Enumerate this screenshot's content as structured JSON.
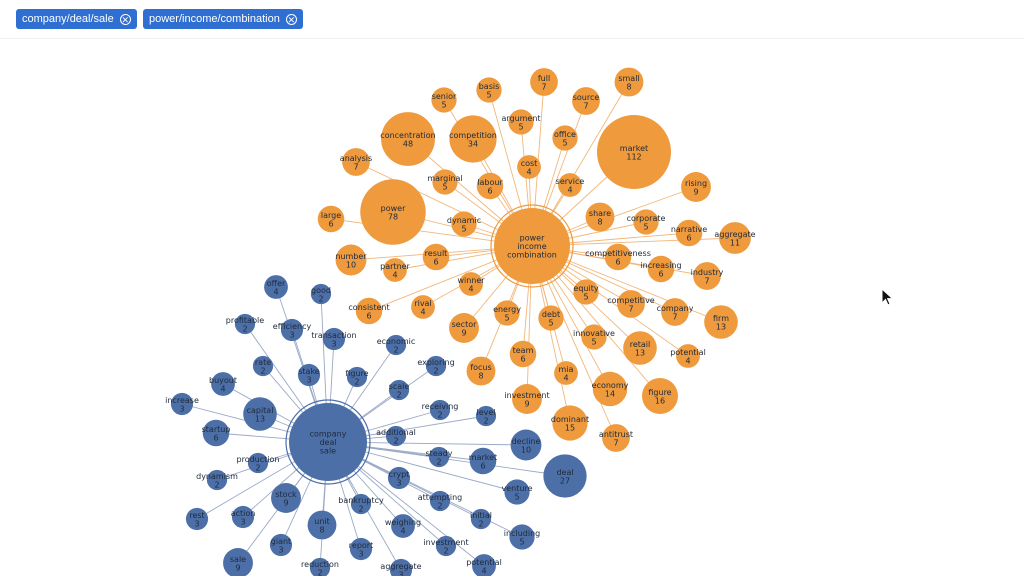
{
  "colors": {
    "chip": "#2f6fd2",
    "orange": "#ef9a3d",
    "blue": "#4d6fa8",
    "orange_edge": "#f2b77a",
    "blue_edge": "#9aa9c6"
  },
  "filters": [
    {
      "label": "company/deal/sale",
      "close_icon": "close-circle-icon"
    },
    {
      "label": "power/income/combination",
      "close_icon": "close-circle-icon"
    }
  ],
  "graph": {
    "hubs": [
      {
        "id": "orange",
        "lines": [
          "power",
          "income",
          "combination"
        ]
      },
      {
        "id": "blue",
        "lines": [
          "company",
          "deal",
          "sale"
        ]
      }
    ],
    "orange_nodes": [
      {
        "word": "senior",
        "count": 5
      },
      {
        "word": "basis",
        "count": 5
      },
      {
        "word": "full",
        "count": 7
      },
      {
        "word": "small",
        "count": 8
      },
      {
        "word": "source",
        "count": 7
      },
      {
        "word": "argument",
        "count": 5
      },
      {
        "word": "concentration",
        "count": 48
      },
      {
        "word": "competition",
        "count": 34
      },
      {
        "word": "office",
        "count": 5
      },
      {
        "word": "market",
        "count": 112
      },
      {
        "word": "analysis",
        "count": 7
      },
      {
        "word": "cost",
        "count": 4
      },
      {
        "word": "marginal",
        "count": 5
      },
      {
        "word": "labour",
        "count": 6
      },
      {
        "word": "service",
        "count": 4
      },
      {
        "word": "rising",
        "count": 9
      },
      {
        "word": "power",
        "count": 78
      },
      {
        "word": "large",
        "count": 6
      },
      {
        "word": "dynamic",
        "count": 5
      },
      {
        "word": "share",
        "count": 8
      },
      {
        "word": "corporate",
        "count": 5
      },
      {
        "word": "narrative",
        "count": 6
      },
      {
        "word": "aggregate",
        "count": 11
      },
      {
        "word": "number",
        "count": 10
      },
      {
        "word": "result",
        "count": 6
      },
      {
        "word": "partner",
        "count": 4
      },
      {
        "word": "competitiveness",
        "count": 6
      },
      {
        "word": "increasing",
        "count": 6
      },
      {
        "word": "industry",
        "count": 7
      },
      {
        "word": "winner",
        "count": 4
      },
      {
        "word": "equity",
        "count": 5
      },
      {
        "word": "consistent",
        "count": 6
      },
      {
        "word": "rival",
        "count": 4
      },
      {
        "word": "competitive",
        "count": 7
      },
      {
        "word": "company",
        "count": 7
      },
      {
        "word": "firm",
        "count": 13
      },
      {
        "word": "energy",
        "count": 5
      },
      {
        "word": "sector",
        "count": 9
      },
      {
        "word": "debt",
        "count": 5
      },
      {
        "word": "innovative",
        "count": 5
      },
      {
        "word": "retail",
        "count": 13
      },
      {
        "word": "potential",
        "count": 4
      },
      {
        "word": "team",
        "count": 6
      },
      {
        "word": "focus",
        "count": 8
      },
      {
        "word": "mia",
        "count": 4
      },
      {
        "word": "economy",
        "count": 14
      },
      {
        "word": "figure",
        "count": 16
      },
      {
        "word": "investment",
        "count": 9
      },
      {
        "word": "dominant",
        "count": 15
      },
      {
        "word": "antitrust",
        "count": 7
      }
    ],
    "blue_nodes": [
      {
        "word": "offer",
        "count": 4
      },
      {
        "word": "good",
        "count": 2
      },
      {
        "word": "profitable",
        "count": 2
      },
      {
        "word": "efficiency",
        "count": 3
      },
      {
        "word": "transaction",
        "count": 3
      },
      {
        "word": "economic",
        "count": 2
      },
      {
        "word": "rate",
        "count": 2
      },
      {
        "word": "stake",
        "count": 3
      },
      {
        "word": "figure",
        "count": 2
      },
      {
        "word": "exploring",
        "count": 2
      },
      {
        "word": "buyout",
        "count": 4
      },
      {
        "word": "scale",
        "count": 2
      },
      {
        "word": "increase",
        "count": 3
      },
      {
        "word": "capital",
        "count": 13
      },
      {
        "word": "receiving",
        "count": 2
      },
      {
        "word": "level",
        "count": 2
      },
      {
        "word": "startup",
        "count": 6
      },
      {
        "word": "additional",
        "count": 2
      },
      {
        "word": "decline",
        "count": 10
      },
      {
        "word": "production",
        "count": 2
      },
      {
        "word": "steady",
        "count": 2
      },
      {
        "word": "market",
        "count": 6
      },
      {
        "word": "deal",
        "count": 27
      },
      {
        "word": "dynamism",
        "count": 2
      },
      {
        "word": "crypt",
        "count": 3
      },
      {
        "word": "venture",
        "count": 5
      },
      {
        "word": "stock",
        "count": 9
      },
      {
        "word": "bankruptcy",
        "count": 2
      },
      {
        "word": "attempting",
        "count": 2
      },
      {
        "word": "rest",
        "count": 3
      },
      {
        "word": "action",
        "count": 3
      },
      {
        "word": "initial",
        "count": 2
      },
      {
        "word": "unit",
        "count": 8
      },
      {
        "word": "weighing",
        "count": 4
      },
      {
        "word": "including",
        "count": 5
      },
      {
        "word": "giant",
        "count": 3
      },
      {
        "word": "report",
        "count": 3
      },
      {
        "word": "investment",
        "count": 2
      },
      {
        "word": "sale",
        "count": 9
      },
      {
        "word": "reduction",
        "count": 2
      },
      {
        "word": "aggregate",
        "count": 3
      },
      {
        "word": "potential",
        "count": 4
      }
    ]
  }
}
